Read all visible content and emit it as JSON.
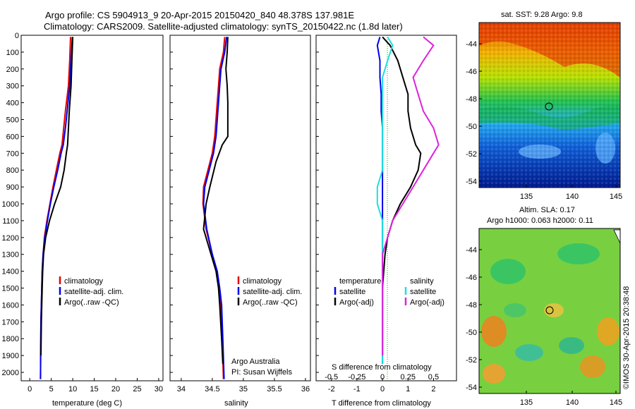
{
  "header": {
    "line1": "Argo profile: CS 5904913_9 20-Apr-2015 20150420_840 48.378S 137.981E",
    "line2": "Climatology: CARS2009. Satellite-adjusted climatology: synTS_20150422.nc (1.8d later)"
  },
  "colors": {
    "clim": "#e00000",
    "sat": "#0000ee",
    "argo": "#000000",
    "sat_s": "#22dddd",
    "argo_s": "#dd22dd"
  },
  "depth_ticks": [
    "0",
    "100",
    "200",
    "300",
    "400",
    "500",
    "600",
    "700",
    "800",
    "900",
    "1000",
    "1100",
    "1200",
    "1300",
    "1400",
    "1500",
    "1600",
    "1700",
    "1800",
    "1900",
    "2000"
  ],
  "chart_data": [
    {
      "type": "line",
      "xlabel": "temperature (deg C)",
      "xticks": [
        "0",
        "5",
        "10",
        "15",
        "20",
        "25",
        "30"
      ],
      "xlim": [
        -2,
        31
      ],
      "ylim": [
        2050,
        0
      ],
      "legend": [
        "climatology",
        "satellite-adj. clim.",
        "Argo(..raw -QC)"
      ],
      "series": [
        {
          "name": "climatology",
          "x": [
            9.5,
            9.3,
            9.0,
            8.3,
            7.9,
            7.5,
            7.0,
            6.2,
            5.4,
            4.7,
            4.0,
            3.4,
            3.1,
            2.9,
            2.8,
            2.7,
            2.6,
            2.55,
            2.5
          ],
          "y": [
            10,
            150,
            300,
            450,
            550,
            650,
            700,
            800,
            900,
            1000,
            1100,
            1200,
            1300,
            1400,
            1500,
            1600,
            1700,
            1850,
            2040
          ]
        },
        {
          "name": "satellite-adj. clim.",
          "x": [
            9.9,
            9.6,
            9.3,
            8.7,
            8.3,
            7.8,
            7.3,
            6.5,
            5.6,
            4.8,
            4.1,
            3.5,
            3.1,
            2.9,
            2.8,
            2.7,
            2.6,
            2.55,
            2.5
          ],
          "y": [
            10,
            150,
            300,
            450,
            550,
            650,
            700,
            800,
            900,
            1000,
            1100,
            1200,
            1300,
            1400,
            1500,
            1600,
            1700,
            1850,
            2040
          ]
        },
        {
          "name": "Argo(..raw -QC)",
          "x": [
            10.0,
            9.8,
            9.6,
            9.2,
            9.0,
            8.8,
            8.5,
            8.0,
            7.2,
            5.8,
            4.6,
            3.7,
            3.2,
            3.0,
            2.9,
            2.8,
            2.7,
            2.6
          ],
          "y": [
            10,
            150,
            300,
            450,
            550,
            650,
            700,
            800,
            900,
            1000,
            1100,
            1200,
            1300,
            1400,
            1500,
            1600,
            1700,
            1900
          ]
        }
      ]
    },
    {
      "type": "line",
      "xlabel": "salinity",
      "xticks": [
        "34",
        "34.5",
        "35",
        "35.5",
        "36"
      ],
      "xlim": [
        33.82,
        36.08
      ],
      "ylim": [
        2050,
        0
      ],
      "legend": [
        "climatology",
        "satellite-adj. clim.",
        "Argo(..raw -QC)"
      ],
      "annotation": [
        "Argo Australia",
        "PI: Susan Wijffels"
      ],
      "series": [
        {
          "name": "climatology",
          "x": [
            34.7,
            34.68,
            34.62,
            34.6,
            34.58,
            34.54,
            34.5,
            34.43,
            34.36,
            34.35,
            34.4,
            34.5,
            34.57,
            34.61,
            34.64,
            34.66,
            34.68
          ],
          "y": [
            10,
            100,
            200,
            300,
            400,
            600,
            700,
            800,
            900,
            1000,
            1150,
            1300,
            1400,
            1500,
            1600,
            1800,
            2040
          ]
        },
        {
          "name": "satellite-adj. clim.",
          "x": [
            34.73,
            34.7,
            34.64,
            34.62,
            34.6,
            34.56,
            34.52,
            34.45,
            34.38,
            34.36,
            34.41,
            34.5,
            34.58,
            34.62,
            34.65,
            34.67,
            34.69
          ],
          "y": [
            10,
            100,
            200,
            300,
            400,
            600,
            700,
            800,
            900,
            1000,
            1150,
            1300,
            1400,
            1500,
            1600,
            1800,
            2040
          ]
        },
        {
          "name": "Argo(..raw -QC)",
          "x": [
            34.75,
            34.74,
            34.72,
            34.74,
            34.75,
            34.75,
            34.66,
            34.56,
            34.46,
            34.4,
            34.36,
            34.48,
            34.56,
            34.6,
            34.62,
            34.65,
            34.67
          ],
          "y": [
            10,
            100,
            200,
            300,
            400,
            600,
            650,
            750,
            900,
            1000,
            1150,
            1300,
            1400,
            1500,
            1600,
            1800,
            1950
          ]
        }
      ]
    },
    {
      "type": "line",
      "xlabel": "T difference from climatology",
      "xticks": [
        "-2",
        "-1",
        "0",
        "1",
        "2"
      ],
      "top_label": "S difference from climatology",
      "top_ticks": [
        "-0.5",
        "-0.25",
        "0",
        "0.25",
        "0.5"
      ],
      "xlim": [
        -2.6,
        2.9
      ],
      "ylim": [
        2050,
        0
      ],
      "legend_t": [
        "temperature",
        "satellite",
        "Argo(-adj)"
      ],
      "legend_s": [
        "salinity",
        "satellite",
        "Argo(-adj)"
      ],
      "series": [
        {
          "name": "satellite",
          "x": [
            -0.1,
            -0.2,
            -0.1,
            -0.1,
            -0.05,
            -0.05,
            0,
            0,
            0,
            0,
            0,
            0,
            0,
            0,
            0,
            0,
            0,
            0,
            0
          ],
          "y": [
            10,
            60,
            150,
            250,
            350,
            450,
            550,
            650,
            700,
            800,
            900,
            1000,
            1100,
            1200,
            1300,
            1400,
            1500,
            1600,
            1950
          ]
        },
        {
          "name": "Argo(-adj)",
          "x": [
            0,
            0.3,
            0.6,
            0.8,
            1.0,
            1.0,
            1.1,
            1.3,
            1.5,
            1.4,
            1.1,
            0.7,
            0.4,
            0.2,
            0.1,
            0.05,
            0,
            0,
            0
          ],
          "y": [
            10,
            60,
            150,
            250,
            350,
            450,
            550,
            650,
            700,
            800,
            900,
            1000,
            1100,
            1200,
            1300,
            1400,
            1500,
            1600,
            1900
          ]
        },
        {
          "name": "satellite",
          "x": [
            0.05,
            0.1,
            0.05,
            0,
            0,
            0,
            0,
            0,
            0,
            0,
            -0.05,
            -0.05,
            0,
            0,
            0,
            0,
            0,
            0,
            0
          ],
          "y": [
            10,
            60,
            150,
            250,
            350,
            450,
            550,
            650,
            700,
            800,
            900,
            1000,
            1100,
            1200,
            1300,
            1400,
            1500,
            1600,
            1950
          ]
        },
        {
          "name": "Argo(-adj)",
          "x": [
            0.4,
            0.5,
            0.4,
            0.3,
            0.35,
            0.4,
            0.5,
            0.55,
            0.5,
            0.4,
            0.3,
            0.2,
            0.1,
            0.05,
            0,
            0,
            0,
            0,
            0
          ],
          "y": [
            10,
            60,
            150,
            250,
            350,
            450,
            550,
            650,
            700,
            800,
            900,
            1000,
            1100,
            1200,
            1300,
            1400,
            1500,
            1600,
            1900
          ]
        }
      ]
    },
    {
      "type": "heatmap",
      "title": "sat. SST: 9.28 Argo: 9.8",
      "xticks": [
        "135",
        "140",
        "145"
      ],
      "yticks": [
        "-44",
        "-46",
        "-48",
        "-50",
        "-52",
        "-54"
      ],
      "marker": {
        "lon": 137.98,
        "lat": -48.38
      }
    },
    {
      "type": "heatmap",
      "title": "Altim. SLA: 0.17",
      "subtitle": "Argo h1000: 0.063 h2000: 0.11",
      "xticks": [
        "135",
        "140",
        "145"
      ],
      "yticks": [
        "-44",
        "-46",
        "-48",
        "-50",
        "-52",
        "-54"
      ],
      "marker": {
        "lon": 137.98,
        "lat": -48.38
      }
    }
  ],
  "credit": "©IMOS 30-Apr-2015 20:38:48"
}
